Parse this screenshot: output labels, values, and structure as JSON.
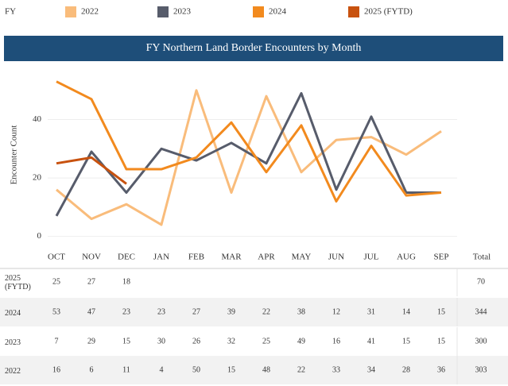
{
  "chart_data": {
    "type": "line",
    "legend_title": "FY",
    "title": "FY Northern Land Border Encounters by Month",
    "y_label": "Encounter Count",
    "categories": [
      "OCT",
      "NOV",
      "DEC",
      "JAN",
      "FEB",
      "MAR",
      "APR",
      "MAY",
      "JUN",
      "JUL",
      "AUG",
      "SEP"
    ],
    "total_label": "Total",
    "series": [
      {
        "name": "2022",
        "color": "#f9bc7b",
        "values": [
          16,
          6,
          11,
          4,
          50,
          15,
          48,
          22,
          33,
          34,
          28,
          36
        ],
        "total": 303
      },
      {
        "name": "2023",
        "color": "#575c6b",
        "values": [
          7,
          29,
          15,
          30,
          26,
          32,
          25,
          49,
          16,
          41,
          15,
          15
        ],
        "total": 300
      },
      {
        "name": "2024",
        "color": "#f28a1e",
        "values": [
          53,
          47,
          23,
          23,
          27,
          39,
          22,
          38,
          12,
          31,
          14,
          15
        ],
        "total": 344
      },
      {
        "name": "2025 (FYTD)",
        "color": "#c8520f",
        "values": [
          25,
          27,
          18,
          null,
          null,
          null,
          null,
          null,
          null,
          null,
          null,
          null
        ],
        "total": 70
      }
    ],
    "ylim": [
      -2,
      57
    ],
    "yticks": [
      0,
      20,
      40
    ],
    "grid": true
  }
}
